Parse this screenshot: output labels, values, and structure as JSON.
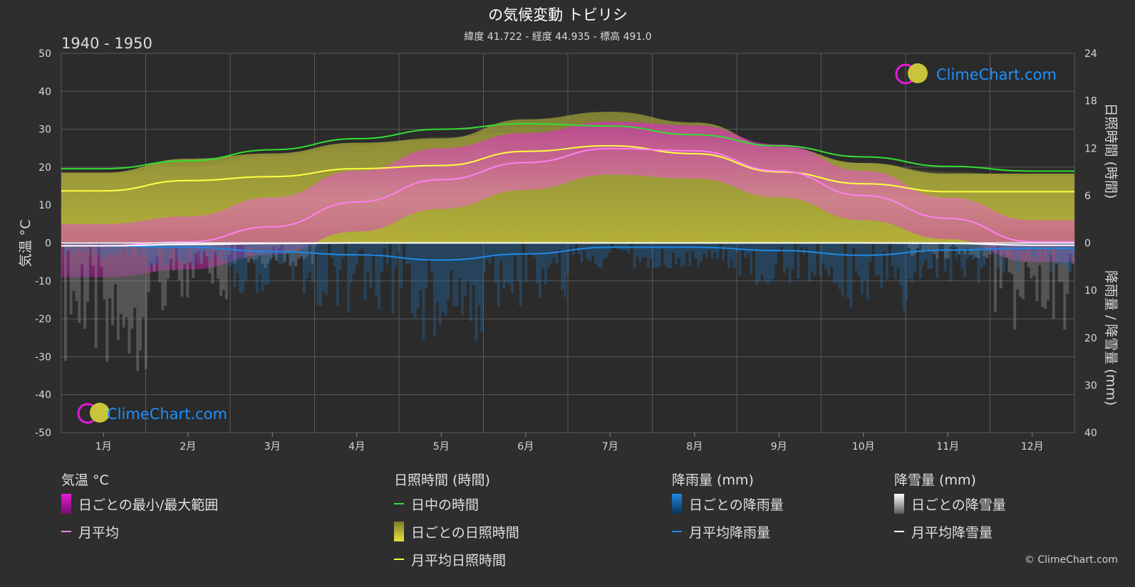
{
  "header": {
    "title": "の気候変動 トビリシ",
    "subtitle": "緯度 41.722 - 経度 44.935 - 標高 491.0",
    "period": "1940 - 1950"
  },
  "brand": {
    "logo_text": "ClimeChart.com",
    "copyright": "© ClimeChart.com"
  },
  "colors": {
    "background": "#2e2e2e",
    "temp_range": "#e31ad6",
    "temp_avg": "#ff80f0",
    "daylight": "#33dd33",
    "sunshine_daily": "#b7b437",
    "sunshine_avg": "#ffff44",
    "rain": "#1e88e5",
    "snow": "#d0d0d0",
    "brand_blue": "#1e90ff"
  },
  "legend": {
    "temperature": {
      "heading": "気温 °C",
      "range_label": "日ごとの最小/最大範囲",
      "avg_label": "月平均"
    },
    "sunshine": {
      "heading": "日照時間 (時間)",
      "daylight_label": "日中の時間",
      "daily_label": "日ごとの日照時間",
      "avg_label": "月平均日照時間"
    },
    "rain": {
      "heading": "降雨量 (mm)",
      "daily_label": "日ごとの降雨量",
      "avg_label": "月平均降雨量"
    },
    "snow": {
      "heading": "降雪量 (mm)",
      "daily_label": "日ごとの降雪量",
      "avg_label": "月平均降雪量"
    }
  },
  "chart_data": {
    "type": "line",
    "categories": [
      "1月",
      "2月",
      "3月",
      "4月",
      "5月",
      "6月",
      "7月",
      "8月",
      "9月",
      "10月",
      "11月",
      "12月"
    ],
    "axes": {
      "left": {
        "label": "気温 °C",
        "min": -50,
        "max": 50,
        "ticks": [
          50,
          40,
          30,
          20,
          10,
          0,
          -10,
          -20,
          -30,
          -40,
          -50
        ]
      },
      "right_top": {
        "label": "日照時間 (時間)",
        "min": 0,
        "max": 24,
        "ticks": [
          24,
          18,
          12,
          6,
          0
        ]
      },
      "right_bottom": {
        "label": "降雨量 / 降雪量 (mm)",
        "min": 0,
        "max": 40,
        "ticks": [
          10,
          20,
          30,
          40
        ]
      }
    },
    "grid": true,
    "series": [
      {
        "name": "日中の時間",
        "axis": "sunshine",
        "values": [
          9.4,
          10.4,
          11.8,
          13.2,
          14.4,
          15.1,
          14.8,
          13.7,
          12.3,
          10.9,
          9.7,
          9.1
        ]
      },
      {
        "name": "月平均日照時間",
        "axis": "sunshine",
        "values": [
          6.6,
          7.9,
          8.4,
          9.4,
          9.8,
          11.6,
          12.3,
          11.3,
          9.0,
          7.5,
          6.5,
          6.5
        ]
      },
      {
        "name": "月平均",
        "axis": "temperature",
        "values": [
          -0.7,
          0.3,
          4.3,
          10.8,
          16.7,
          21.2,
          24.9,
          24.3,
          19.0,
          12.5,
          6.5,
          0.3
        ]
      },
      {
        "name": "日ごとの最小/最大範囲",
        "axis": "temperature",
        "min": [
          -9,
          -7,
          -3,
          3,
          9,
          14,
          18,
          17,
          12,
          6,
          1,
          -5
        ],
        "max": [
          5,
          7,
          12,
          19,
          25,
          29,
          32,
          31,
          26,
          19,
          12,
          6
        ]
      },
      {
        "name": "月平均降雨量",
        "axis": "precip",
        "values": [
          0.6,
          0.9,
          1.8,
          2.5,
          3.6,
          2.3,
          0.9,
          0.9,
          1.6,
          2.6,
          1.5,
          1.1
        ]
      },
      {
        "name": "月平均降雪量",
        "axis": "precip",
        "values": [
          1.5,
          0.8,
          0.3,
          0,
          0,
          0,
          0,
          0,
          0,
          0,
          0.2,
          1.2
        ]
      }
    ]
  }
}
